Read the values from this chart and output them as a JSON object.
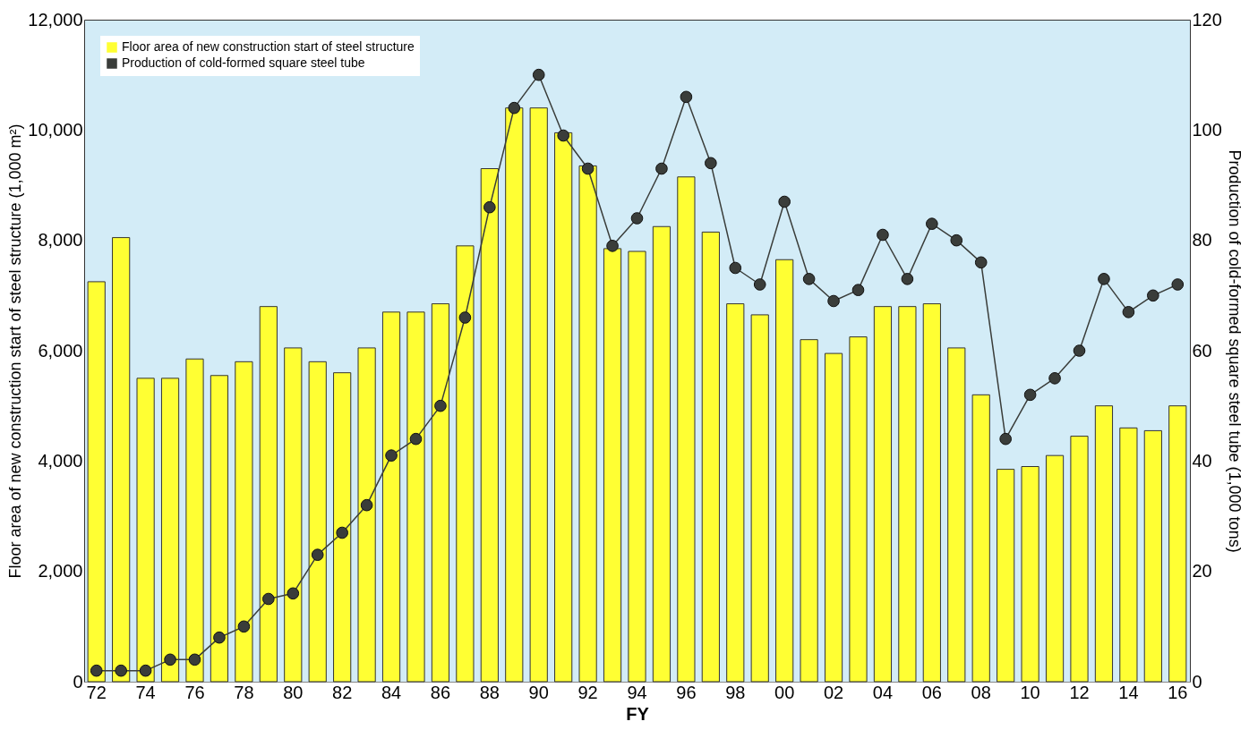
{
  "chart_data": {
    "type": "bar",
    "xlabel": "FY",
    "ylabel": "Floor area of new construction start of steel structure (1,000 m²)",
    "y2label": "Production of cold-formed square steel tube (1,000 tons)",
    "categories": [
      "72",
      null,
      "74",
      null,
      "76",
      null,
      "78",
      null,
      "80",
      null,
      "82",
      null,
      "84",
      null,
      "86",
      null,
      "88",
      null,
      "90",
      null,
      "92",
      null,
      "94",
      null,
      "96",
      null,
      "98",
      null,
      "00",
      null,
      "02",
      null,
      "04",
      null,
      "06",
      null,
      "08",
      null,
      "10",
      null,
      "12",
      null,
      "14",
      null,
      "16"
    ],
    "series": [
      {
        "name": "Floor area of new construction start of steel structure",
        "color": "#ffff33",
        "values": [
          7250,
          8050,
          5500,
          5500,
          5850,
          5550,
          5800,
          6800,
          6050,
          5800,
          5600,
          6050,
          6700,
          6700,
          6850,
          7900,
          9300,
          10400,
          10400,
          9950,
          9350,
          7850,
          7800,
          8250,
          9150,
          8150,
          6850,
          6650,
          7650,
          6200,
          5950,
          6250,
          6800,
          6800,
          6850,
          6050,
          5200,
          3850,
          3900,
          4100,
          4450,
          5000,
          4600,
          4550,
          5000
        ]
      },
      {
        "name": "Production of cold-formed square steel tube",
        "type": "line",
        "axis": "y2",
        "color": "#3a3d3a",
        "values": [
          2,
          2,
          2,
          4,
          4,
          8,
          10,
          15,
          16,
          23,
          27,
          32,
          41,
          44,
          50,
          66,
          86,
          104,
          110,
          99,
          93,
          79,
          84,
          93,
          106,
          94,
          75,
          72,
          87,
          73,
          69,
          71,
          81,
          73,
          83,
          80,
          76,
          44,
          52,
          55,
          60,
          73,
          67,
          70,
          72
        ]
      }
    ],
    "ylim": [
      0,
      12000
    ],
    "yticks": [
      {
        "value": 0,
        "label": "0"
      },
      {
        "value": 2000,
        "label": "2,000"
      },
      {
        "value": 4000,
        "label": "4,000"
      },
      {
        "value": 6000,
        "label": "6,000"
      },
      {
        "value": 8000,
        "label": "8,000"
      },
      {
        "value": 10000,
        "label": "10,000"
      },
      {
        "value": 12000,
        "label": "12,000"
      }
    ],
    "y2lim": [
      0,
      120
    ],
    "y2ticks": [
      0,
      20,
      40,
      60,
      80,
      100,
      120
    ],
    "marker": "circle",
    "grid": false,
    "legend": "top left"
  }
}
